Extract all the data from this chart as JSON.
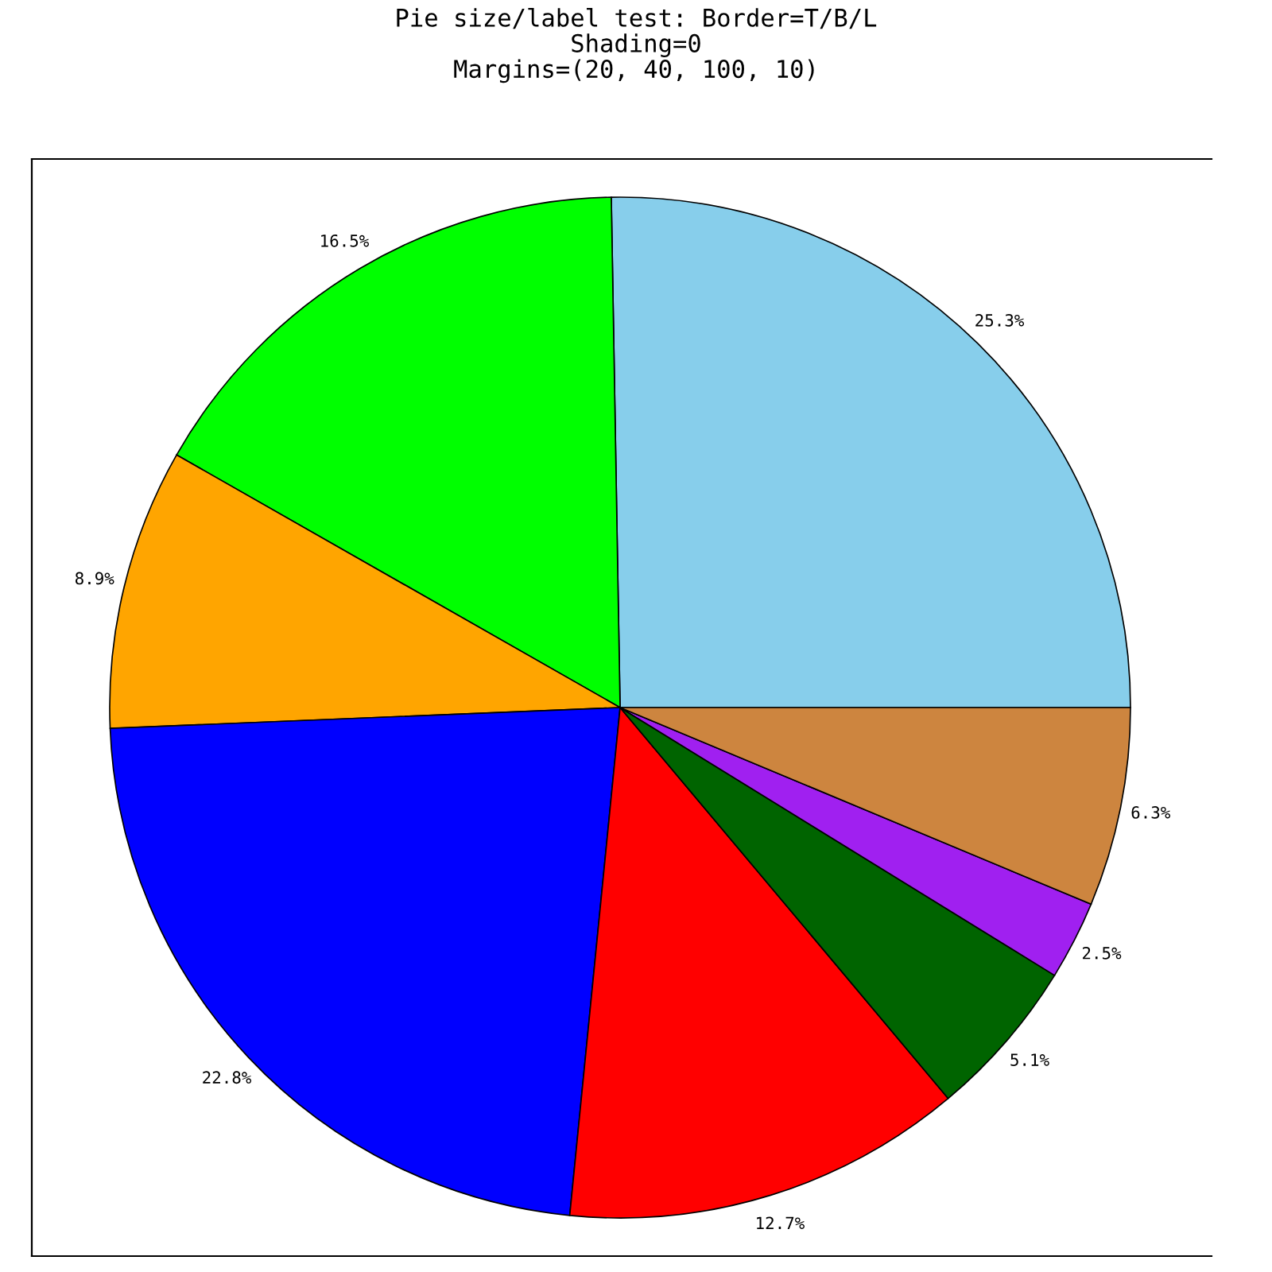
{
  "chart_data": {
    "type": "pie",
    "title": "Pie size/label test: Border=T/B/L\nShading=0\nMargins=(20, 40, 100, 10)",
    "categories": [
      null,
      null,
      null,
      null,
      null,
      null,
      null,
      null
    ],
    "values": [
      25.3,
      16.5,
      8.9,
      22.8,
      12.7,
      5.1,
      2.5,
      6.3
    ],
    "colors": [
      "#87ceeb",
      "#00ff00",
      "#ffa500",
      "#0000ff",
      "#ff0000",
      "#006400",
      "#a020f0",
      "#cd853f"
    ],
    "value_labels": [
      "25.3%",
      "16.5%",
      "8.9%",
      "22.8%",
      "12.7%",
      "5.1%",
      "2.5%",
      "6.3%"
    ]
  }
}
